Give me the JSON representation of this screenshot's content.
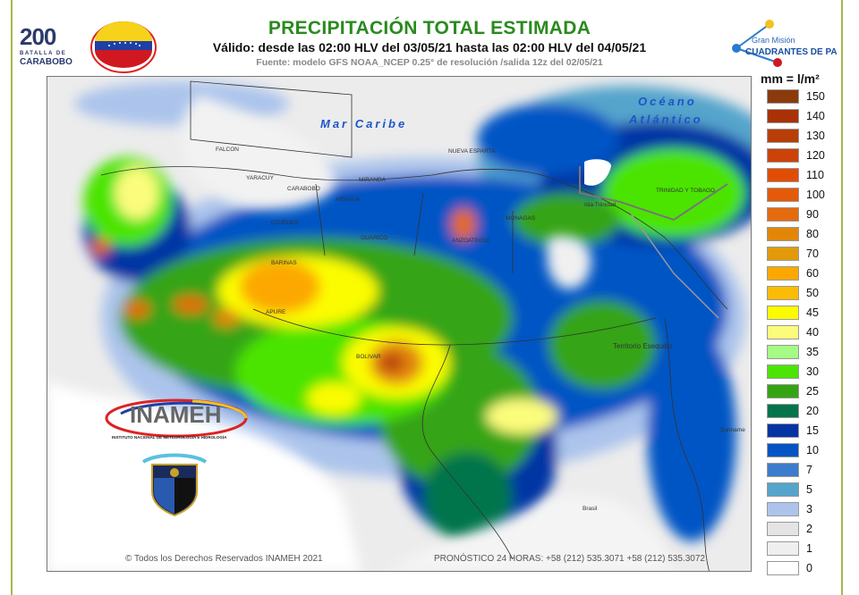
{
  "header": {
    "title": "PRECIPITACIÓN TOTAL ESTIMADA",
    "validity": "Válido: desde las 02:00 HLV del 03/05/21 hasta las 02:00 HLV del 04/05/21",
    "source": "Fuente: modelo GFS NOAA_NCEP 0.25° de resolución /salida 12z del 02/05/21"
  },
  "logos": {
    "bicentenario": {
      "number": "200",
      "line1": "BATALLA DE",
      "line2": "CARABOBO"
    },
    "ministry_seal": "Ministerio del Poder Popular para Relaciones Interiores, Justicia y Paz",
    "gran_mision": {
      "line1": "Gran Misión",
      "line2": "CUADRANTES DE PAZ"
    },
    "inameh": {
      "name": "INAMEH",
      "full": "INSTITUTO NACIONAL DE METEOROLOGÍA E HIDROLOGÍA"
    }
  },
  "map": {
    "seas": {
      "caribbean": "Mar Caribe",
      "atlantic_1": "Océano",
      "atlantic_2": "Atlántico"
    },
    "labels": {
      "falcon": "FALCON",
      "yaracuy": "YARACUY",
      "carabobo": "CARABOBO",
      "miranda": "MIRANDA",
      "aragua": "ARAGUA",
      "nueva_esparta": "NUEVA ESPARTA",
      "cojedes": "COJEDES",
      "guarico": "GUARICO",
      "anzoategui": "ANZOATEGUI",
      "monagas": "MONAGAS",
      "barinas": "BARINAS",
      "apure": "APURE",
      "bolivar": "BOLIVAR",
      "isla_trinidad": "Isla Trinidad",
      "trinidad_tobago": "TRINIDAD Y TOBAGO",
      "esequibo": "Territorio Esequibo",
      "brasil": "Brasil",
      "suriname": "Suriname"
    }
  },
  "legend": {
    "title": "mm = l/m²",
    "items": [
      {
        "value": "150",
        "color": "#8b3a0c"
      },
      {
        "value": "140",
        "color": "#a83205"
      },
      {
        "value": "130",
        "color": "#b83e08"
      },
      {
        "value": "120",
        "color": "#cc430a"
      },
      {
        "value": "110",
        "color": "#e24d05"
      },
      {
        "value": "100",
        "color": "#e45a08"
      },
      {
        "value": "90",
        "color": "#e46a10"
      },
      {
        "value": "80",
        "color": "#e2860a"
      },
      {
        "value": "70",
        "color": "#e29a0a"
      },
      {
        "value": "60",
        "color": "#fca800"
      },
      {
        "value": "50",
        "color": "#fcbc04"
      },
      {
        "value": "45",
        "color": "#fcfc00"
      },
      {
        "value": "40",
        "color": "#fcfc7c"
      },
      {
        "value": "35",
        "color": "#a4fc84"
      },
      {
        "value": "30",
        "color": "#4ce404"
      },
      {
        "value": "25",
        "color": "#34a414"
      },
      {
        "value": "20",
        "color": "#04744c"
      },
      {
        "value": "15",
        "color": "#0434a4"
      },
      {
        "value": "10",
        "color": "#0454c4"
      },
      {
        "value": "7",
        "color": "#3c7ccc"
      },
      {
        "value": "5",
        "color": "#54a4cc"
      },
      {
        "value": "3",
        "color": "#acc4ec"
      },
      {
        "value": "2",
        "color": "#e4e4e4"
      },
      {
        "value": "1",
        "color": "#efefef"
      },
      {
        "value": "0",
        "color": "#ffffff"
      }
    ]
  },
  "footer": {
    "copyright": "© Todos los Derechos Reservados INAMEH 2021",
    "phones": "PRONÓSTICO 24 HORAS: +58 (212) 535.3071 +58 (212) 535.3072"
  }
}
